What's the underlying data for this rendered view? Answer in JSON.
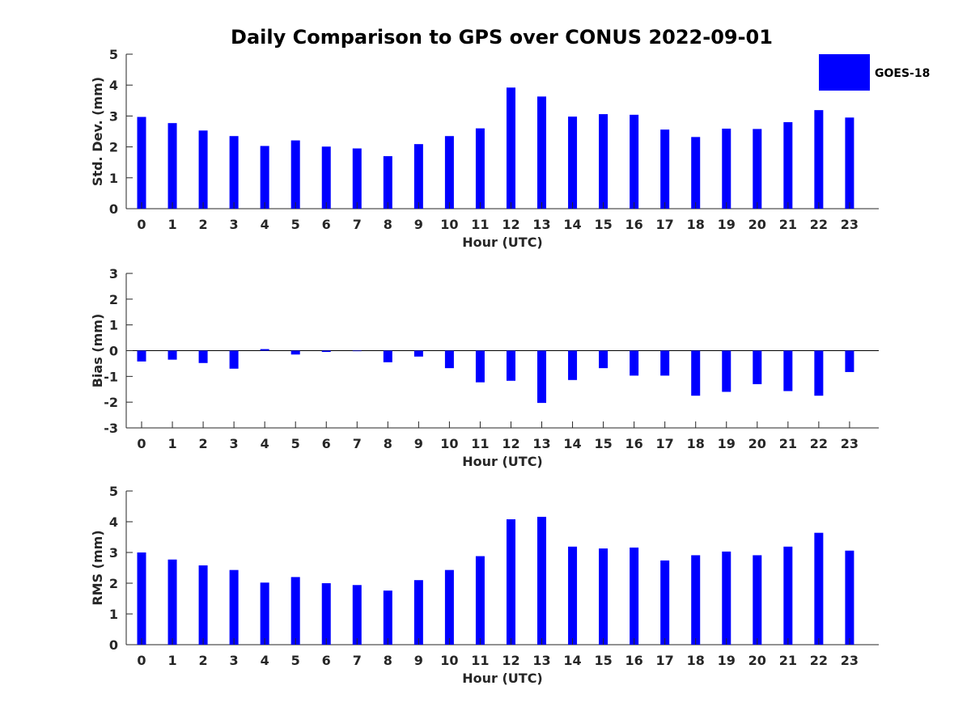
{
  "figure": {
    "title": "Daily Comparison to GPS over CONUS 2022-09-01",
    "bar_color": "#0000ff",
    "legend": {
      "label": "GOES-18"
    }
  },
  "chart_data": [
    {
      "type": "bar",
      "series_name": "GOES-18",
      "xlabel": "Hour (UTC)",
      "ylabel": "Std. Dev. (mm)",
      "categories": [
        "0",
        "1",
        "2",
        "3",
        "4",
        "5",
        "6",
        "7",
        "8",
        "9",
        "10",
        "11",
        "12",
        "13",
        "14",
        "15",
        "16",
        "17",
        "18",
        "19",
        "20",
        "21",
        "22",
        "23"
      ],
      "values": [
        2.97,
        2.77,
        2.53,
        2.35,
        2.03,
        2.21,
        2.01,
        1.95,
        1.7,
        2.09,
        2.35,
        2.6,
        3.92,
        3.63,
        2.98,
        3.06,
        3.04,
        2.56,
        2.32,
        2.59,
        2.58,
        2.8,
        3.19,
        2.95
      ],
      "ylim": [
        0,
        5
      ],
      "yticks": [
        0,
        1,
        2,
        3,
        4,
        5
      ],
      "zero_line": false
    },
    {
      "type": "bar",
      "series_name": "GOES-18",
      "xlabel": "Hour (UTC)",
      "ylabel": "Bias (mm)",
      "categories": [
        "0",
        "1",
        "2",
        "3",
        "4",
        "5",
        "6",
        "7",
        "8",
        "9",
        "10",
        "11",
        "12",
        "13",
        "14",
        "15",
        "16",
        "17",
        "18",
        "19",
        "20",
        "21",
        "22",
        "23"
      ],
      "values": [
        -0.42,
        -0.35,
        -0.48,
        -0.7,
        0.06,
        -0.15,
        -0.05,
        -0.02,
        -0.45,
        -0.23,
        -0.68,
        -1.23,
        -1.17,
        -2.03,
        -1.14,
        -0.68,
        -0.97,
        -0.97,
        -1.75,
        -1.6,
        -1.3,
        -1.57,
        -1.75,
        -0.83
      ],
      "ylim": [
        -3,
        3
      ],
      "yticks": [
        -3,
        -2,
        -1,
        0,
        1,
        2,
        3
      ],
      "zero_line": true
    },
    {
      "type": "bar",
      "series_name": "GOES-18",
      "xlabel": "Hour (UTC)",
      "ylabel": "RMS (mm)",
      "categories": [
        "0",
        "1",
        "2",
        "3",
        "4",
        "5",
        "6",
        "7",
        "8",
        "9",
        "10",
        "11",
        "12",
        "13",
        "14",
        "15",
        "16",
        "17",
        "18",
        "19",
        "20",
        "21",
        "22",
        "23"
      ],
      "values": [
        3.0,
        2.77,
        2.58,
        2.43,
        2.02,
        2.2,
        2.0,
        1.94,
        1.76,
        2.1,
        2.43,
        2.88,
        4.08,
        4.16,
        3.19,
        3.13,
        3.16,
        2.74,
        2.91,
        3.03,
        2.91,
        3.19,
        3.64,
        3.06
      ],
      "ylim": [
        0,
        5
      ],
      "yticks": [
        0,
        1,
        2,
        3,
        4,
        5
      ],
      "zero_line": false
    }
  ]
}
